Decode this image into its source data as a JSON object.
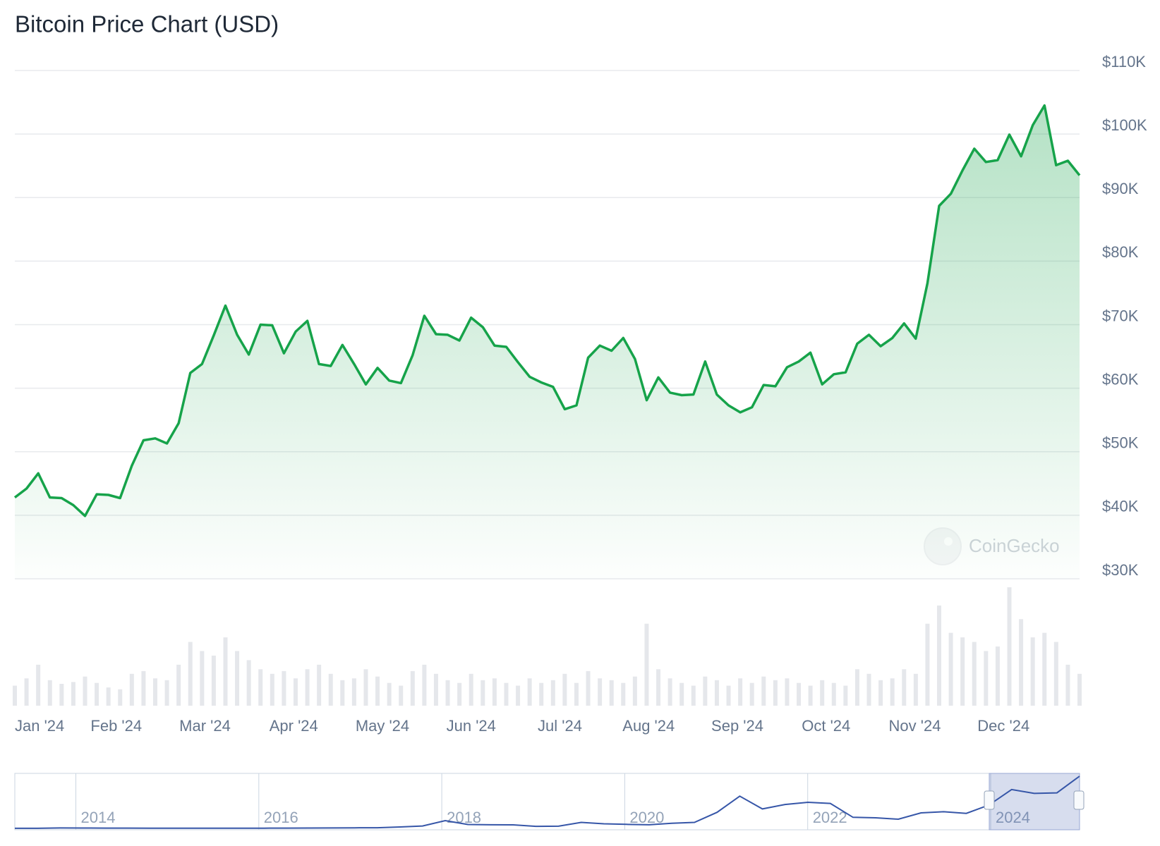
{
  "chart_data": {
    "type": "line",
    "title": "Bitcoin Price Chart (USD)",
    "color": "#16a34a",
    "grid": true,
    "ylim": [
      30000,
      110000
    ],
    "yticks": [
      {
        "value": 30000,
        "label": "$30K"
      },
      {
        "value": 40000,
        "label": "$40K"
      },
      {
        "value": 50000,
        "label": "$50K"
      },
      {
        "value": 60000,
        "label": "$60K"
      },
      {
        "value": 70000,
        "label": "$70K"
      },
      {
        "value": 80000,
        "label": "$80K"
      },
      {
        "value": 90000,
        "label": "$90K"
      },
      {
        "value": 100000,
        "label": "$100K"
      },
      {
        "value": 110000,
        "label": "$110K"
      }
    ],
    "xticks": [
      "Jan '24",
      "Feb '24",
      "Mar '24",
      "Apr '24",
      "May '24",
      "Jun '24",
      "Jul '24",
      "Aug '24",
      "Sep '24",
      "Oct '24",
      "Nov '24",
      "Dec '24"
    ],
    "values": [
      42800,
      44200,
      46600,
      42800,
      42700,
      41600,
      39900,
      43300,
      43200,
      42700,
      47800,
      51800,
      52100,
      51300,
      54500,
      62400,
      63800,
      68300,
      73000,
      68400,
      65300,
      70000,
      69900,
      65500,
      68900,
      70600,
      63800,
      63500,
      66800,
      63800,
      60600,
      63200,
      61200,
      60800,
      65200,
      71400,
      68500,
      68400,
      67500,
      71100,
      69600,
      66700,
      66500,
      64100,
      61800,
      60900,
      60200,
      56700,
      57300,
      64800,
      66700,
      65900,
      67900,
      64600,
      58100,
      61700,
      59300,
      58900,
      59000,
      64200,
      59000,
      57300,
      56200,
      57000,
      60500,
      60300,
      63300,
      64200,
      65600,
      60600,
      62200,
      62500,
      67000,
      68400,
      66600,
      67900,
      70200,
      67800,
      76500,
      88700,
      90600,
      94300,
      97700,
      95600,
      95900,
      99900,
      96500,
      101400,
      104500,
      95100,
      95800,
      93500
    ],
    "volume": {
      "color": "#e5e7eb",
      "values": [
        22,
        30,
        45,
        28,
        24,
        26,
        32,
        25,
        20,
        18,
        35,
        38,
        30,
        28,
        45,
        70,
        60,
        55,
        75,
        60,
        50,
        40,
        35,
        38,
        30,
        40,
        45,
        35,
        28,
        30,
        40,
        32,
        25,
        22,
        38,
        45,
        35,
        28,
        25,
        35,
        28,
        30,
        25,
        22,
        30,
        25,
        28,
        35,
        25,
        38,
        30,
        28,
        25,
        32,
        90,
        40,
        30,
        25,
        22,
        32,
        28,
        22,
        30,
        25,
        32,
        28,
        30,
        25,
        22,
        28,
        25,
        22,
        40,
        35,
        28,
        30,
        40,
        35,
        90,
        110,
        80,
        75,
        70,
        60,
        65,
        130,
        95,
        75,
        80,
        70,
        45,
        35
      ]
    },
    "watermark": "CoinGecko",
    "navigator": {
      "color": "#3656a8",
      "xticks": [
        "2014",
        "2016",
        "2018",
        "2020",
        "2022",
        "2024"
      ],
      "values": [
        100,
        100,
        800,
        600,
        500,
        500,
        400,
        250,
        240,
        280,
        320,
        400,
        450,
        600,
        700,
        1000,
        1200,
        2500,
        4300,
        14000,
        7000,
        6500,
        6300,
        3700,
        4000,
        10800,
        8300,
        7200,
        6500,
        9100,
        10800,
        29000,
        58000,
        35000,
        43000,
        47000,
        45000,
        20000,
        19000,
        16500,
        28000,
        30000,
        27000,
        42000,
        70000,
        63000,
        64000,
        94000
      ]
    }
  }
}
